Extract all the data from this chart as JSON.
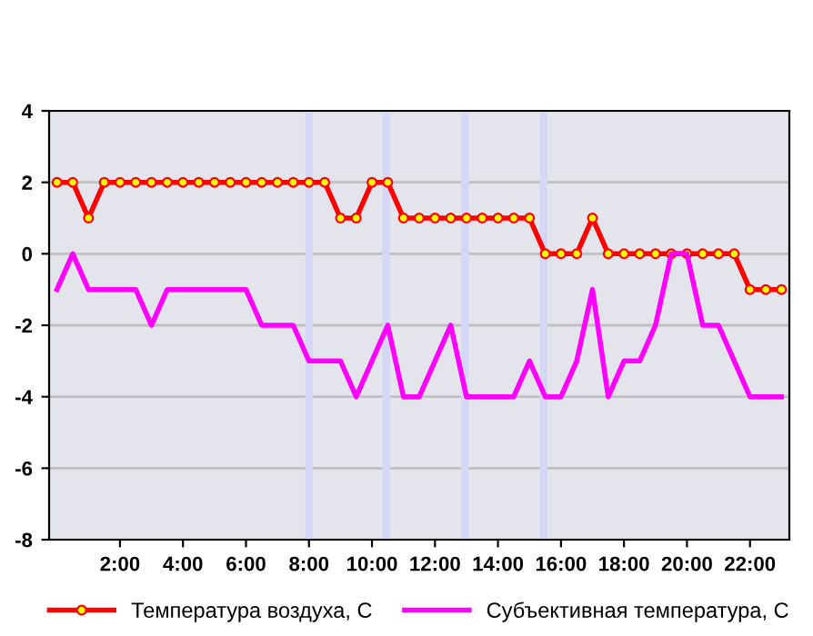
{
  "chart_data": {
    "type": "line",
    "x": [
      0,
      0.5,
      1,
      1.5,
      2,
      2.5,
      3,
      3.5,
      4,
      4.5,
      5,
      5.5,
      6,
      6.5,
      7,
      7.5,
      8,
      8.5,
      9,
      9.5,
      10,
      10.5,
      11,
      11.5,
      12,
      12.5,
      13,
      13.5,
      14,
      14.5,
      15,
      15.5,
      16,
      16.5,
      17,
      17.5,
      18,
      18.5,
      19,
      19.5,
      20,
      20.5,
      21,
      21.5,
      22,
      22.5,
      23
    ],
    "series": [
      {
        "name": "Температура воздуха, С",
        "color": "#ff0000",
        "marker": "circle",
        "values": [
          2,
          2,
          1,
          2,
          2,
          2,
          2,
          2,
          2,
          2,
          2,
          2,
          2,
          2,
          2,
          2,
          2,
          2,
          1,
          1,
          2,
          2,
          1,
          1,
          1,
          1,
          1,
          1,
          1,
          1,
          1,
          0,
          0,
          0,
          1,
          0,
          0,
          0,
          0,
          0,
          0,
          0,
          0,
          0,
          -1,
          -1,
          -1
        ]
      },
      {
        "name": "Субъективная температура, С",
        "color": "#ff00ff",
        "marker": "none",
        "values": [
          -1,
          0,
          -1,
          -1,
          -1,
          -1,
          -2,
          -1,
          -1,
          -1,
          -1,
          -1,
          -1,
          -2,
          -2,
          -2,
          -3,
          -3,
          -3,
          -4,
          -3,
          -2,
          -4,
          -4,
          -3,
          -2,
          -4,
          -4,
          -4,
          -4,
          -3,
          -4,
          -4,
          -3,
          -1,
          -4,
          -3,
          -3,
          -2,
          0,
          0,
          -2,
          -2,
          -3,
          -4,
          -4,
          -4
        ]
      }
    ],
    "xlim": [
      -0.25,
      23.25
    ],
    "xticks": [
      {
        "value": 2,
        "label": "2:00"
      },
      {
        "value": 4,
        "label": "4:00"
      },
      {
        "value": 6,
        "label": "6:00"
      },
      {
        "value": 8,
        "label": "8:00"
      },
      {
        "value": 10,
        "label": "10:00"
      },
      {
        "value": 12,
        "label": "12:00"
      },
      {
        "value": 14,
        "label": "14:00"
      },
      {
        "value": 16,
        "label": "16:00"
      },
      {
        "value": 18,
        "label": "18:00"
      },
      {
        "value": 20,
        "label": "20:00"
      },
      {
        "value": 22,
        "label": "22:00"
      }
    ],
    "ylim": [
      -8,
      4
    ],
    "yticks": [
      -8,
      -6,
      -4,
      -2,
      0,
      2,
      4
    ],
    "ref_lines": [
      {
        "axis": "x",
        "value": 8.0,
        "color": "#d4d8f6"
      },
      {
        "axis": "x",
        "value": 10.45,
        "color": "#d4d8f6"
      },
      {
        "axis": "x",
        "value": 12.95,
        "color": "#d4d8f6"
      },
      {
        "axis": "x",
        "value": 15.45,
        "color": "#d4d8f6"
      }
    ],
    "grid": "y",
    "legend": "bottom",
    "line_style": "solid"
  }
}
